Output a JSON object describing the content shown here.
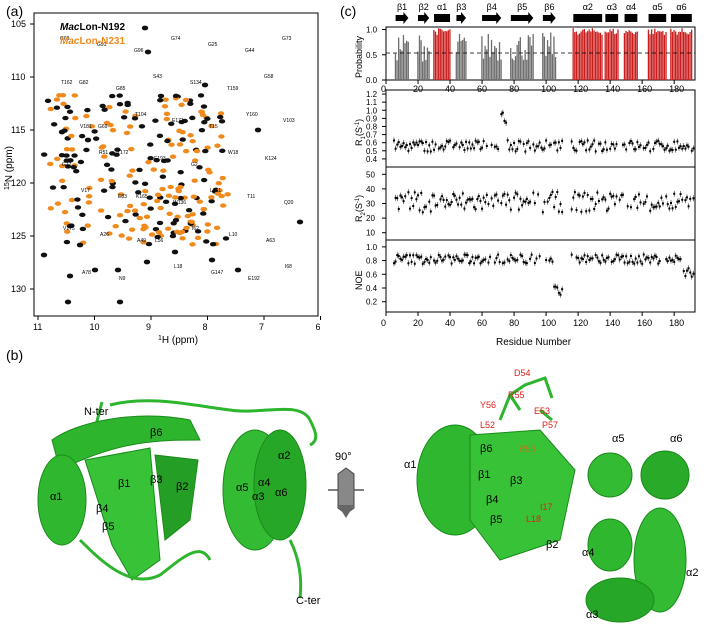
{
  "panel_labels": {
    "a": "(a)",
    "b": "(b)",
    "c": "(c)"
  },
  "panel_a": {
    "legend": [
      {
        "prefix": "Mac",
        "suffix": "Lon-N192",
        "color": "#000000"
      },
      {
        "prefix": "Mac",
        "suffix": "Lon-N231",
        "color": "#f08a1c"
      }
    ],
    "xlabel_sup": "1",
    "xlabel": "H (ppm)",
    "ylabel_sup": "15",
    "ylabel": "N (ppm)",
    "xticks": [
      "11",
      "10",
      "9",
      "8",
      "7",
      "6"
    ],
    "yticks": [
      "105",
      "110",
      "115",
      "120",
      "125",
      "130"
    ],
    "peak_labels": [
      "G60",
      "G91",
      "G96",
      "G74",
      "G25",
      "G44",
      "G73",
      "G82",
      "G85",
      "S43",
      "S134",
      "T159",
      "G58",
      "T162",
      "G69",
      "T104",
      "E171",
      "T15",
      "Y160",
      "V103",
      "V181",
      "T172",
      "E193",
      "G2",
      "W18",
      "K124",
      "G72",
      "R51",
      "K165",
      "W136",
      "L161",
      "T11",
      "Q20",
      "V17",
      "E83",
      "L56",
      "I62",
      "L10",
      "A63",
      "V175",
      "A26",
      "A49",
      "L18",
      "G147",
      "E192",
      "I68",
      "A78",
      "N9"
    ]
  },
  "panel_b": {
    "labels_left": [
      "N-ter",
      "β6",
      "α1",
      "β1",
      "β3",
      "β2",
      "β4",
      "β5",
      "α4",
      "α5",
      "α3",
      "α2",
      "α6",
      "C-ter"
    ],
    "rotation": "90°",
    "labels_right": [
      "α1",
      "β6",
      "β1",
      "β3",
      "β4",
      "β5",
      "β2",
      "α5",
      "α6",
      "α4",
      "α2",
      "α3"
    ],
    "residue_labels": [
      "D54",
      "R55",
      "Y56",
      "E53",
      "L52",
      "P57",
      "R50",
      "I17",
      "L18"
    ]
  },
  "panel_c": {
    "ss_labels": [
      "β1",
      "β2",
      "α1",
      "β3",
      "β4",
      "β5",
      "β6",
      "α2",
      "α3",
      "α4",
      "α5",
      "α6"
    ],
    "probability_ylabel": "Probability",
    "r1_ylabel": "R (S )",
    "r1_sub": "1",
    "r1_sup": "-1",
    "r2_ylabel": "R (S )",
    "r2_sub": "2",
    "r2_sup": "-1",
    "noe_ylabel": "NOE",
    "xlabel": "Residue Number",
    "xticks": [
      "0",
      "20",
      "40",
      "60",
      "80",
      "100",
      "120",
      "140",
      "160",
      "180"
    ],
    "prob_yticks": [
      "0.0",
      "0.5",
      "1.0"
    ],
    "r1_yticks": [
      "0.4",
      "0.5",
      "0.6",
      "0.7",
      "0.8",
      "0.9",
      "1.0",
      "1.1",
      "1.2"
    ],
    "r2_yticks": [
      "10",
      "20",
      "30",
      "40",
      "50"
    ],
    "noe_yticks": [
      "0.2",
      "0.4",
      "0.6",
      "0.8",
      "1.0"
    ]
  },
  "colors": {
    "green": "#2db52d",
    "dark_green": "#1a8a1a",
    "red": "#c81e1e",
    "gray": "#6e6e6e",
    "orange": "#f08a1c",
    "black": "#000000"
  }
}
